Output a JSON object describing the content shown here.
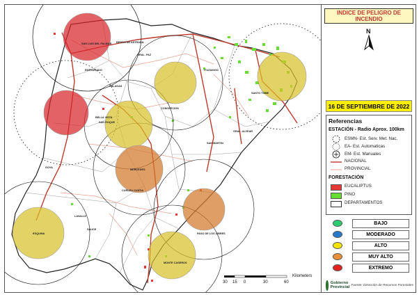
{
  "title": "INDICE DE PELIGRO DE INCENDIO",
  "north_label": "N",
  "date": "16 DE SEPTIEMBRE DE 2022",
  "references": {
    "heading": "Referencias",
    "station_heading": "ESTACIÓN - Radio Aprox. 100km",
    "stations": [
      {
        "label": "ESMN- Est. Serv. Met. Nac.",
        "symbol": "dashed-circle-icon"
      },
      {
        "label": "EA- Est. Automaticas",
        "symbol": "dotted-circle-icon"
      },
      {
        "label": "EM- Est. Manuales",
        "symbol": "plus-circle-icon"
      }
    ],
    "roads": [
      {
        "label": "NACIONAL",
        "color": "#c0392b"
      },
      {
        "label": "PROVINCIAL",
        "color": "#e8a090"
      }
    ],
    "forest_heading": "FORESTACIÓN",
    "forest": [
      {
        "label": "EUCALIPTUS",
        "color": "#e53935"
      },
      {
        "label": "PINO",
        "color": "#66dd33"
      },
      {
        "label": "DEPARTAMENTOS",
        "color": "#ffffff"
      }
    ]
  },
  "levels": [
    {
      "label": "BAJO",
      "color": "#2ecc71"
    },
    {
      "label": "MODERADO",
      "color": "#2979c9"
    },
    {
      "label": "ALTO",
      "color": "#f5e400"
    },
    {
      "label": "MUY ALTO",
      "color": "#e8913a"
    },
    {
      "label": "EXTREMO",
      "color": "#e52222"
    }
  ],
  "government": {
    "name": "Gobierno Provincial",
    "source": "Fuente: Dirección de Recursos Forestales"
  },
  "scale": {
    "unit": "Kilometers",
    "ticks": [
      "30",
      "15",
      "0",
      "30",
      "60"
    ]
  },
  "stations_on_map": [
    {
      "level": "EXTREMO",
      "color": "#d9262b"
    },
    {
      "level": "EXTREMO",
      "color": "#d9262b"
    },
    {
      "level": "ALTO",
      "color": "#d9c22c"
    },
    {
      "level": "ALTO",
      "color": "#d9c22c"
    },
    {
      "level": "ALTO",
      "color": "#d9c22c"
    },
    {
      "level": "MUY ALTO",
      "color": "#d57a2e"
    },
    {
      "level": "MUY ALTO",
      "color": "#d57a2e"
    },
    {
      "level": "ALTO",
      "color": "#d9c22c"
    },
    {
      "level": "ALTO",
      "color": "#d9c22c"
    }
  ],
  "map_labels": [
    "GRAL. PAZ",
    "ITUZAINGO",
    "SANTO TOME",
    "SAN MARTIN",
    "GRAL. ALVEAR",
    "CONCEPCION",
    "MERCEDES",
    "SAN ROQUE",
    "BELLA VISTA",
    "GOYA",
    "ESQUINA",
    "CURUZU CUATIA",
    "PASO DE LOS LIBRES",
    "MONTE CASEROS",
    "SAUCE",
    "EMPEDRADO",
    "SALADAS",
    "BERON DE ASTRADA",
    "SAN LUIS DEL PALMAR",
    "LAVALLE"
  ]
}
